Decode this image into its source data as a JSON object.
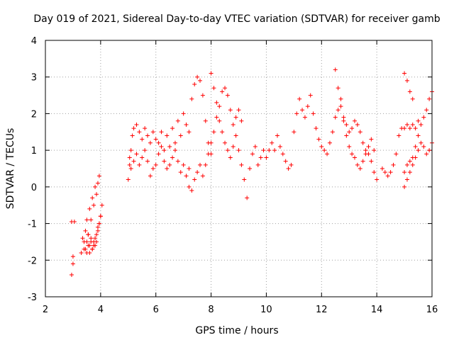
{
  "chart_data": {
    "type": "scatter",
    "title": "Day 019 of 2021, Sidereal Day-to-day VTEC variation (SDTVAR) for receiver gamb",
    "xlabel": "GPS time / hours",
    "ylabel": "SDTVAR / TECUs",
    "xlim": [
      2,
      16
    ],
    "ylim": [
      -3,
      4
    ],
    "xticks": [
      2,
      4,
      6,
      8,
      10,
      12,
      14,
      16
    ],
    "yticks": [
      -3,
      -2,
      -1,
      0,
      1,
      2,
      3,
      4
    ],
    "xtick_labels": [
      "2",
      "4",
      "6",
      "8",
      "10",
      "12",
      "14",
      "16"
    ],
    "ytick_labels": [
      "-3",
      "-2",
      "-1",
      "0",
      "1",
      "2",
      "3",
      "4"
    ],
    "grid": true,
    "marker": "+",
    "color": "#ff0000",
    "series": [
      {
        "name": "SDTVAR",
        "x": [
          2.95,
          2.95,
          3.0,
          3.0,
          3.05,
          3.3,
          3.35,
          3.4,
          3.45,
          3.5,
          3.55,
          3.6,
          3.65,
          3.7,
          3.75,
          3.8,
          3.85,
          3.9,
          3.95,
          3.4,
          3.45,
          3.5,
          3.55,
          3.6,
          3.65,
          3.7,
          3.75,
          3.8,
          3.85,
          3.9,
          3.95,
          4.0,
          4.05,
          3.5,
          3.55,
          3.6,
          3.65,
          3.7,
          3.75,
          3.8,
          3.85,
          3.9,
          3.95,
          4.0,
          5.0,
          5.05,
          5.1,
          5.15,
          5.2,
          5.3,
          5.4,
          5.5,
          5.6,
          5.7,
          5.8,
          5.9,
          6.0,
          5.05,
          5.1,
          5.2,
          5.3,
          5.4,
          5.5,
          5.6,
          5.7,
          5.8,
          5.9,
          6.0,
          6.1,
          6.2,
          6.3,
          6.4,
          6.5,
          6.6,
          6.7,
          6.8,
          6.9,
          7.0,
          7.1,
          7.2,
          6.1,
          6.2,
          6.3,
          6.4,
          6.5,
          6.6,
          6.7,
          6.8,
          6.9,
          7.0,
          7.1,
          7.2,
          7.3,
          7.4,
          7.5,
          7.6,
          7.7,
          7.8,
          7.9,
          8.0,
          7.2,
          7.3,
          7.4,
          7.5,
          7.6,
          7.7,
          7.8,
          7.9,
          8.0,
          8.1,
          8.2,
          8.3,
          8.4,
          8.5,
          8.6,
          8.7,
          8.8,
          8.9,
          9.0,
          9.1,
          8.0,
          8.1,
          8.2,
          8.3,
          8.4,
          8.5,
          8.6,
          8.7,
          8.8,
          8.9,
          9.0,
          9.1,
          9.2,
          9.3,
          9.4,
          9.5,
          9.6,
          9.7,
          9.8,
          9.9,
          10.0,
          10.1,
          10.2,
          10.3,
          10.4,
          10.5,
          10.6,
          10.7,
          10.8,
          10.9,
          11.0,
          11.1,
          11.2,
          11.3,
          11.4,
          11.5,
          11.6,
          11.7,
          11.8,
          11.9,
          12.0,
          12.1,
          12.2,
          12.3,
          12.4,
          12.5,
          12.6,
          12.7,
          12.8,
          12.9,
          13.0,
          13.1,
          13.2,
          13.3,
          13.4,
          13.5,
          13.6,
          13.7,
          13.8,
          13.9,
          12.5,
          12.6,
          12.7,
          12.8,
          12.9,
          13.0,
          13.1,
          13.2,
          13.3,
          13.4,
          13.5,
          13.6,
          13.7,
          13.8,
          13.9,
          14.0,
          14.2,
          14.3,
          14.4,
          14.5,
          14.6,
          14.7,
          14.8,
          14.9,
          15.0,
          15.1,
          15.2,
          15.3,
          15.4,
          15.5,
          15.0,
          15.1,
          15.2,
          15.3,
          15.4,
          15.5,
          15.6,
          15.7,
          15.8,
          15.9,
          16.0,
          15.0,
          15.1,
          15.2,
          15.3,
          15.4,
          15.5,
          15.6,
          15.7,
          15.8,
          15.9,
          16.0,
          15.0,
          15.1,
          15.2,
          15.3
        ],
        "y": [
          -0.95,
          -2.4,
          -2.1,
          -1.9,
          -0.95,
          -1.8,
          -1.4,
          -1.7,
          -1.2,
          -0.9,
          -1.3,
          -0.6,
          -0.9,
          -0.3,
          -0.5,
          0.0,
          -0.2,
          0.1,
          0.3,
          -1.5,
          -1.7,
          -1.8,
          -1.6,
          -1.8,
          -1.5,
          -1.7,
          -1.6,
          -1.4,
          -1.5,
          -1.2,
          -1.0,
          -0.8,
          -0.5,
          -1.5,
          -1.3,
          -1.6,
          -1.4,
          -1.7,
          -1.5,
          -1.6,
          -1.3,
          -1.1,
          -1.0,
          -0.8,
          0.2,
          0.6,
          1.0,
          1.4,
          1.6,
          1.7,
          1.5,
          1.3,
          1.6,
          1.4,
          1.2,
          1.5,
          1.3,
          0.8,
          0.5,
          0.7,
          0.9,
          0.6,
          0.8,
          1.0,
          0.7,
          0.3,
          0.5,
          0.6,
          1.2,
          1.5,
          1.0,
          1.4,
          1.1,
          1.6,
          1.2,
          1.8,
          1.4,
          2.0,
          1.7,
          1.5,
          0.9,
          1.1,
          0.7,
          0.5,
          0.6,
          0.8,
          1.0,
          0.7,
          0.4,
          0.6,
          0.3,
          0.5,
          2.4,
          2.8,
          3.0,
          2.9,
          2.5,
          1.8,
          1.2,
          0.9,
          0.0,
          -0.1,
          0.2,
          0.4,
          0.6,
          0.3,
          0.6,
          0.9,
          1.2,
          1.5,
          1.9,
          2.2,
          2.6,
          2.7,
          2.5,
          2.1,
          1.7,
          1.9,
          2.1,
          1.8,
          3.1,
          2.7,
          2.3,
          1.8,
          1.5,
          1.2,
          1.0,
          0.8,
          1.1,
          1.4,
          1.0,
          0.6,
          0.2,
          -0.3,
          0.5,
          0.9,
          1.1,
          0.6,
          0.8,
          1.0,
          0.8,
          1.0,
          1.2,
          1.0,
          1.4,
          1.1,
          0.9,
          0.7,
          0.5,
          0.6,
          1.5,
          2.0,
          2.4,
          2.1,
          1.9,
          2.2,
          2.5,
          2.0,
          1.6,
          1.3,
          1.1,
          1.0,
          0.9,
          1.2,
          1.5,
          1.9,
          2.1,
          2.4,
          1.9,
          1.7,
          1.5,
          1.6,
          1.8,
          1.7,
          1.5,
          1.2,
          1.0,
          0.9,
          0.7,
          0.4,
          3.2,
          2.7,
          2.2,
          1.8,
          1.4,
          1.1,
          0.9,
          0.8,
          0.6,
          0.5,
          0.7,
          0.9,
          1.1,
          1.3,
          1.0,
          0.2,
          0.5,
          0.4,
          0.3,
          0.4,
          0.6,
          0.9,
          1.4,
          1.6,
          1.6,
          1.7,
          1.6,
          1.7,
          1.6,
          1.8,
          0.0,
          0.2,
          0.4,
          0.6,
          0.8,
          1.0,
          1.2,
          1.1,
          0.9,
          1.0,
          1.2,
          0.4,
          0.6,
          0.7,
          0.8,
          1.1,
          1.4,
          1.7,
          1.9,
          2.1,
          2.4,
          2.6,
          3.1,
          2.9,
          2.6,
          2.4
        ]
      }
    ]
  }
}
